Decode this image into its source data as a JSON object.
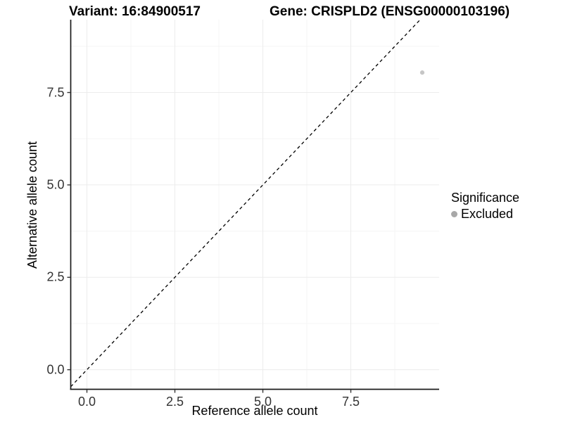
{
  "titles": {
    "variant": "Variant: 16:84900517",
    "gene": "Gene: CRISPLD2 (ENSG00000103196)"
  },
  "axes": {
    "x": {
      "label": "Reference allele count",
      "tick_labels": [
        "0.0",
        "2.5",
        "5.0",
        "7.5"
      ]
    },
    "y": {
      "label": "Alternative allele count",
      "tick_labels": [
        "0.0",
        "2.5",
        "5.0",
        "7.5"
      ]
    }
  },
  "legend": {
    "title": "Significance",
    "items": [
      {
        "label": "Excluded",
        "color": "#a8a8a8"
      }
    ]
  },
  "colors": {
    "background": "#ffffff",
    "axis_line": "#1a1a1a",
    "tick_mark": "#333333",
    "tick_text": "#333333",
    "grid_major": "#ececec",
    "grid_minor": "#f5f5f5",
    "reference_line": "#000000",
    "point": "#c6c6c6"
  },
  "chart_data": {
    "type": "scatter",
    "title": "Variant: 16:84900517   |   Gene: CRISPLD2 (ENSG00000103196)",
    "xlabel": "Reference allele count",
    "ylabel": "Alternative allele count",
    "xlim": [
      -0.46,
      10.01
    ],
    "ylim": [
      -0.53,
      9.47
    ],
    "x_ticks": [
      0.0,
      2.5,
      5.0,
      7.5
    ],
    "y_ticks": [
      0.0,
      2.5,
      5.0,
      7.5
    ],
    "x_minor_ticks": [
      1.25,
      3.75,
      6.25,
      8.75
    ],
    "y_minor_ticks": [
      1.25,
      3.75,
      6.25,
      8.75
    ],
    "grid": "major and minor gridlines, very light gray, white panel",
    "reference_line": {
      "type": "abline",
      "slope": 1,
      "intercept": 0,
      "linetype": "dashed"
    },
    "legend_position": "right",
    "series": [
      {
        "name": "Excluded",
        "color": "#c6c6c6",
        "points": [
          {
            "x": 9.53,
            "y": 8.04
          }
        ]
      }
    ]
  }
}
